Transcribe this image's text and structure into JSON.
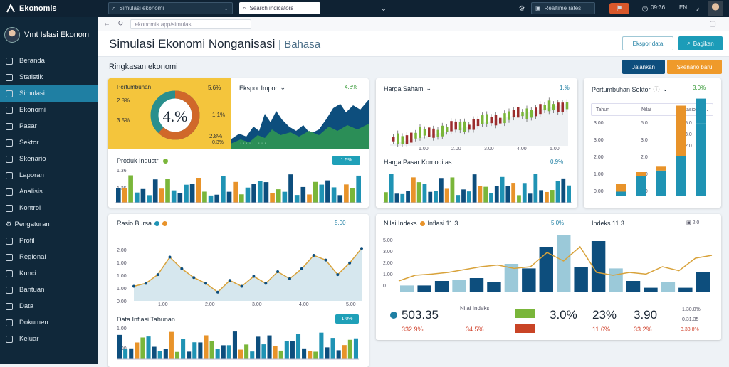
{
  "app": {
    "name": "Ekonomis",
    "search_placeholder": "Search indicators",
    "region_select": "Simulasi ekonomi",
    "rates_button": "Realtime rates",
    "lang": "EN",
    "time": "09:36",
    "user_short": "ID"
  },
  "user": {
    "name": "Vmt Islasi Ekonom"
  },
  "sidebar": {
    "items": [
      {
        "label": "Beranda",
        "icon": "home-icon"
      },
      {
        "label": "Statistik",
        "icon": "chart-icon"
      },
      {
        "label": "Simulasi",
        "icon": "sim-icon"
      },
      {
        "label": "Ekonomi",
        "icon": "economy-icon"
      },
      {
        "label": "Pasar",
        "icon": "market-icon"
      },
      {
        "label": "Sektor",
        "icon": "sector-icon"
      },
      {
        "label": "Skenario",
        "icon": "scenario-icon"
      },
      {
        "label": "Laporan",
        "icon": "report-icon"
      },
      {
        "label": "Analisis",
        "icon": "analysis-icon"
      },
      {
        "label": "Kontrol",
        "icon": "control-icon"
      }
    ],
    "section": "Pengaturan",
    "items2": [
      {
        "label": "Profil",
        "icon": "profile-icon"
      },
      {
        "label": "Regional",
        "icon": "regional-icon"
      },
      {
        "label": "Kunci",
        "icon": "key-icon"
      },
      {
        "label": "Bantuan",
        "icon": "help-icon"
      },
      {
        "label": "Data",
        "icon": "data-icon"
      },
      {
        "label": "Dokumen",
        "icon": "doc-icon"
      },
      {
        "label": "Keluar",
        "icon": "logout-icon"
      }
    ]
  },
  "browser": {
    "url": "ekonomis.app/simulasi"
  },
  "header": {
    "title": "Simulasi Ekonomi Nonganisasi",
    "subtitle": "Bahasa",
    "btn_export": "Ekspor data",
    "btn_share": "Bagikan"
  },
  "subbar": {
    "label": "Ringkasan ekonomi",
    "btn_run": "Jalankan",
    "btn_scenario": "Skenario baru"
  },
  "card1": {
    "title": "Pertumbuhan",
    "left_vals": [
      "2.8%",
      "3.5%"
    ],
    "right_vals": [
      "5.6%",
      "1.1%",
      "2.8%",
      "0.3%"
    ],
    "donut_label": "4.%",
    "donut_pct": 0.62,
    "chart_title": "Ekspor Impor",
    "chart_pct": "4.8%",
    "bar_title": "Produk Industri",
    "bar_pill": "1.5%",
    "axis": [
      "1.36",
      "1.35"
    ]
  },
  "card2": {
    "title": "Harga Saham",
    "pct": "1.%",
    "x_ticks": [
      "1.00",
      "2.00",
      "3.00",
      "4.00",
      "5.00"
    ],
    "bar_title": "Harga Pasar Komoditas",
    "bar_pct": "0.9%"
  },
  "card3": {
    "title": "Pertumbuhan Sektor",
    "pct": "3.0%",
    "col_heads": [
      "Tahun",
      "Nilai",
      "Rasio"
    ],
    "y_ticks": [
      "3.00",
      "3.00",
      "2.00",
      "1.00",
      "0.00"
    ],
    "y_vals": [
      "5.0",
      "3.0",
      "2.0",
      "1.0",
      "0.0"
    ],
    "right_ticks": [
      "5.0",
      "3.0",
      "2.0"
    ]
  },
  "card4": {
    "title": "Rasio Bursa",
    "pct": "5.00",
    "y_ticks": [
      "2.00",
      "1.00",
      "1.00",
      "1.00",
      "0.00"
    ],
    "x_ticks": [
      "1.00",
      "2.00",
      "3.00",
      "4.00",
      "5.00"
    ],
    "bar_title": "Data Inflasi Tahunan",
    "bar_pill": "1.0%",
    "bar_ticks": [
      "1.00",
      "1.00"
    ]
  },
  "card5": {
    "title": "Nilai Indeks",
    "title2": "Inflasi 11.3",
    "pct": "5.0%",
    "right_title": "Indeks 11.3",
    "right_pct": "2.0",
    "y_ticks": [
      "5.00",
      "3.00",
      "2.00",
      "1.00",
      "0"
    ],
    "kpi_label": "Nilai Indeks",
    "kpis": [
      {
        "value": "503.35",
        "sub": "332.9%"
      },
      {
        "value": "3.0%",
        "sub": "34.5%"
      },
      {
        "value": "23%",
        "sub": "11.6%"
      },
      {
        "value": "3.90",
        "sub": "33.2%"
      }
    ],
    "kpi_right": [
      "1.30.0%",
      "0.31.35",
      "3.38.8%"
    ]
  },
  "colors": {
    "teal": "#1f93b4",
    "navy": "#0d4e7d",
    "orange": "#e8932a",
    "green": "#7ab63a",
    "red": "#c94426",
    "yellow": "#f3c33d"
  }
}
